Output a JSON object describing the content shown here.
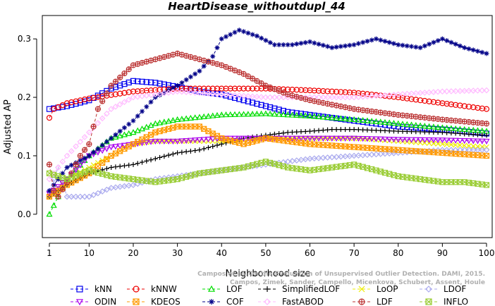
{
  "chart_data": {
    "type": "line",
    "title": "HeartDisease_withoutdupl_44",
    "xlabel": "Neighborhood size",
    "ylabel": "Adjusted AP",
    "xlim": [
      1,
      100
    ],
    "ylim": [
      -0.04,
      0.34
    ],
    "xticks": [
      1,
      10,
      20,
      30,
      40,
      50,
      60,
      70,
      80,
      90,
      100
    ],
    "yticks": [
      0.0,
      0.1,
      0.2,
      0.3
    ],
    "ytick_labels": [
      "0.0",
      "0.1",
      "0.2",
      "0.3"
    ],
    "grid": false,
    "legend_position": "bottom",
    "watermark": [
      "Campos et al. On the Evaluation of Unsupervised Outlier Detection. DAMI, 2015.",
      "Campos, Zimek, Sander, Campello, Micenkova, Schubert, Assent, Houle"
    ],
    "series": [
      {
        "name": "kNN",
        "color": "#0000ee",
        "marker": "square",
        "points": [
          [
            1,
            0.18
          ],
          [
            5,
            0.185
          ],
          [
            10,
            0.195
          ],
          [
            15,
            0.215
          ],
          [
            20,
            0.228
          ],
          [
            25,
            0.225
          ],
          [
            30,
            0.218
          ],
          [
            35,
            0.21
          ],
          [
            40,
            0.205
          ],
          [
            45,
            0.195
          ],
          [
            50,
            0.185
          ],
          [
            55,
            0.175
          ],
          [
            60,
            0.17
          ],
          [
            70,
            0.16
          ],
          [
            80,
            0.15
          ],
          [
            90,
            0.145
          ],
          [
            100,
            0.138
          ]
        ]
      },
      {
        "name": "kNNW",
        "color": "#ee0000",
        "marker": "circle",
        "points": [
          [
            1,
            0.165
          ],
          [
            2,
            0.18
          ],
          [
            5,
            0.19
          ],
          [
            10,
            0.198
          ],
          [
            20,
            0.21
          ],
          [
            30,
            0.215
          ],
          [
            40,
            0.215
          ],
          [
            50,
            0.215
          ],
          [
            60,
            0.212
          ],
          [
            70,
            0.208
          ],
          [
            80,
            0.2
          ],
          [
            90,
            0.19
          ],
          [
            100,
            0.18
          ]
        ]
      },
      {
        "name": "LOF",
        "color": "#00dd00",
        "marker": "triangle",
        "points": [
          [
            1,
            0.0
          ],
          [
            3,
            0.03
          ],
          [
            5,
            0.06
          ],
          [
            10,
            0.1
          ],
          [
            15,
            0.13
          ],
          [
            20,
            0.14
          ],
          [
            25,
            0.155
          ],
          [
            30,
            0.162
          ],
          [
            40,
            0.17
          ],
          [
            50,
            0.172
          ],
          [
            60,
            0.168
          ],
          [
            70,
            0.162
          ],
          [
            80,
            0.155
          ],
          [
            90,
            0.148
          ],
          [
            100,
            0.142
          ]
        ]
      },
      {
        "name": "SimplifiedLOF",
        "color": "#000000",
        "marker": "plus",
        "points": [
          [
            1,
            0.03
          ],
          [
            5,
            0.05
          ],
          [
            10,
            0.07
          ],
          [
            15,
            0.08
          ],
          [
            20,
            0.085
          ],
          [
            25,
            0.095
          ],
          [
            30,
            0.105
          ],
          [
            35,
            0.11
          ],
          [
            40,
            0.12
          ],
          [
            45,
            0.13
          ],
          [
            50,
            0.135
          ],
          [
            55,
            0.14
          ],
          [
            60,
            0.142
          ],
          [
            65,
            0.145
          ],
          [
            70,
            0.145
          ],
          [
            80,
            0.142
          ],
          [
            90,
            0.14
          ],
          [
            100,
            0.135
          ]
        ]
      },
      {
        "name": "LoOP",
        "color": "#eeee00",
        "marker": "cross",
        "points": [
          [
            1,
            0.03
          ],
          [
            5,
            0.06
          ],
          [
            10,
            0.08
          ],
          [
            15,
            0.1
          ],
          [
            20,
            0.12
          ],
          [
            25,
            0.125
          ],
          [
            30,
            0.125
          ],
          [
            35,
            0.125
          ],
          [
            40,
            0.125
          ],
          [
            50,
            0.13
          ],
          [
            60,
            0.13
          ],
          [
            70,
            0.13
          ],
          [
            80,
            0.125
          ],
          [
            90,
            0.12
          ],
          [
            100,
            0.115
          ]
        ]
      },
      {
        "name": "LDOF",
        "color": "#aaaaee",
        "marker": "diamond",
        "points": [
          [
            1,
            0.04
          ],
          [
            3,
            0.08
          ],
          [
            5,
            0.03
          ],
          [
            10,
            0.03
          ],
          [
            15,
            0.045
          ],
          [
            20,
            0.05
          ],
          [
            25,
            0.06
          ],
          [
            30,
            0.065
          ],
          [
            40,
            0.075
          ],
          [
            50,
            0.085
          ],
          [
            60,
            0.095
          ],
          [
            70,
            0.1
          ],
          [
            80,
            0.105
          ],
          [
            90,
            0.11
          ],
          [
            100,
            0.11
          ]
        ]
      },
      {
        "name": "ODIN",
        "color": "#aa00ee",
        "marker": "triangle-down",
        "points": [
          [
            1,
            0.035
          ],
          [
            5,
            0.06
          ],
          [
            10,
            0.1
          ],
          [
            15,
            0.115
          ],
          [
            20,
            0.12
          ],
          [
            25,
            0.125
          ],
          [
            30,
            0.125
          ],
          [
            40,
            0.13
          ],
          [
            50,
            0.13
          ],
          [
            60,
            0.13
          ],
          [
            70,
            0.13
          ],
          [
            80,
            0.128
          ],
          [
            90,
            0.127
          ],
          [
            100,
            0.125
          ]
        ]
      },
      {
        "name": "KDEOS",
        "color": "#ff9900",
        "marker": "box-x",
        "points": [
          [
            1,
            0.03
          ],
          [
            5,
            0.05
          ],
          [
            10,
            0.07
          ],
          [
            15,
            0.1
          ],
          [
            20,
            0.12
          ],
          [
            25,
            0.14
          ],
          [
            30,
            0.15
          ],
          [
            35,
            0.15
          ],
          [
            40,
            0.13
          ],
          [
            45,
            0.12
          ],
          [
            50,
            0.13
          ],
          [
            55,
            0.125
          ],
          [
            60,
            0.12
          ],
          [
            70,
            0.115
          ],
          [
            80,
            0.11
          ],
          [
            90,
            0.105
          ],
          [
            100,
            0.1
          ]
        ]
      },
      {
        "name": "COF",
        "color": "#000088",
        "marker": "asterisk",
        "points": [
          [
            1,
            0.04
          ],
          [
            5,
            0.08
          ],
          [
            10,
            0.1
          ],
          [
            15,
            0.13
          ],
          [
            20,
            0.16
          ],
          [
            25,
            0.2
          ],
          [
            30,
            0.22
          ],
          [
            35,
            0.245
          ],
          [
            38,
            0.27
          ],
          [
            40,
            0.3
          ],
          [
            44,
            0.315
          ],
          [
            48,
            0.305
          ],
          [
            52,
            0.29
          ],
          [
            56,
            0.29
          ],
          [
            60,
            0.295
          ],
          [
            65,
            0.285
          ],
          [
            70,
            0.29
          ],
          [
            75,
            0.3
          ],
          [
            80,
            0.29
          ],
          [
            85,
            0.285
          ],
          [
            90,
            0.3
          ],
          [
            95,
            0.285
          ],
          [
            100,
            0.275
          ]
        ]
      },
      {
        "name": "FastABOD",
        "color": "#ffbbff",
        "marker": "diamond",
        "points": [
          [
            1,
            0.06
          ],
          [
            5,
            0.1
          ],
          [
            10,
            0.14
          ],
          [
            15,
            0.18
          ],
          [
            20,
            0.2
          ],
          [
            25,
            0.205
          ],
          [
            30,
            0.21
          ],
          [
            40,
            0.205
          ],
          [
            50,
            0.2
          ],
          [
            60,
            0.2
          ],
          [
            70,
            0.2
          ],
          [
            80,
            0.205
          ],
          [
            90,
            0.21
          ],
          [
            100,
            0.212
          ]
        ]
      },
      {
        "name": "LDF",
        "color": "#bb3333",
        "marker": "circle-plus",
        "points": [
          [
            1,
            0.085
          ],
          [
            2,
            0.04
          ],
          [
            3,
            0.03
          ],
          [
            5,
            0.055
          ],
          [
            8,
            0.1
          ],
          [
            10,
            0.12
          ],
          [
            12,
            0.18
          ],
          [
            15,
            0.22
          ],
          [
            20,
            0.255
          ],
          [
            25,
            0.265
          ],
          [
            30,
            0.275
          ],
          [
            35,
            0.265
          ],
          [
            40,
            0.255
          ],
          [
            45,
            0.24
          ],
          [
            50,
            0.22
          ],
          [
            55,
            0.205
          ],
          [
            60,
            0.195
          ],
          [
            70,
            0.18
          ],
          [
            80,
            0.17
          ],
          [
            90,
            0.162
          ],
          [
            100,
            0.155
          ]
        ]
      },
      {
        "name": "INFLO",
        "color": "#99cc33",
        "marker": "box-x",
        "points": [
          [
            1,
            0.07
          ],
          [
            5,
            0.06
          ],
          [
            10,
            0.075
          ],
          [
            15,
            0.065
          ],
          [
            20,
            0.06
          ],
          [
            25,
            0.055
          ],
          [
            30,
            0.06
          ],
          [
            35,
            0.07
          ],
          [
            40,
            0.075
          ],
          [
            45,
            0.08
          ],
          [
            50,
            0.09
          ],
          [
            55,
            0.08
          ],
          [
            60,
            0.075
          ],
          [
            65,
            0.08
          ],
          [
            70,
            0.085
          ],
          [
            75,
            0.075
          ],
          [
            80,
            0.065
          ],
          [
            85,
            0.06
          ],
          [
            90,
            0.055
          ],
          [
            95,
            0.055
          ],
          [
            100,
            0.05
          ]
        ]
      }
    ]
  }
}
